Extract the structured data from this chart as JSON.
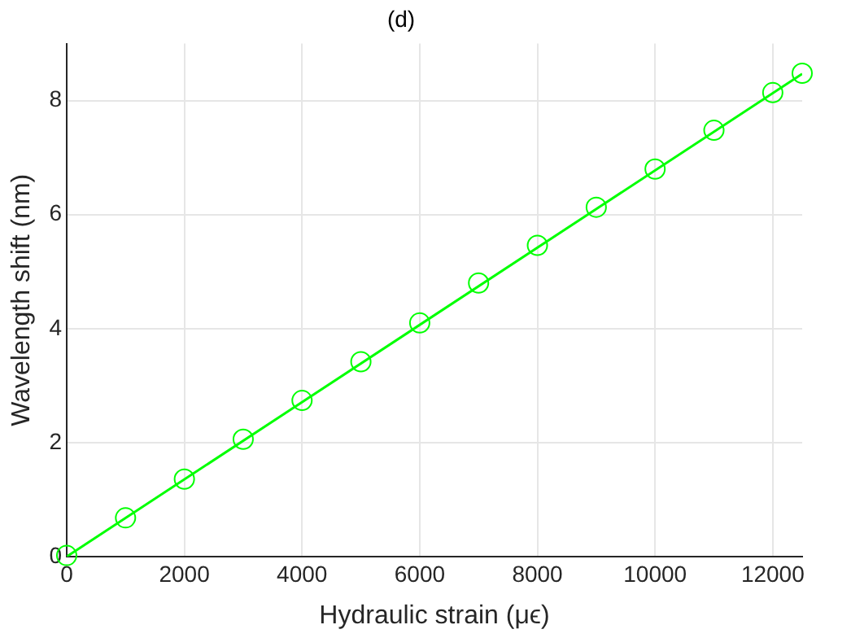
{
  "chart_data": {
    "type": "scatter",
    "title": "(d)",
    "xlabel": "Hydraulic strain (μϵ)",
    "ylabel": "Wavelength shift (nm)",
    "xlim": [
      0,
      12500
    ],
    "xticks": [
      0,
      2000,
      4000,
      6000,
      8000,
      10000,
      12000
    ],
    "ylim": [
      0,
      9
    ],
    "yticks": [
      0,
      2,
      4,
      6,
      8
    ],
    "grid": true,
    "series": [
      {
        "color": "#00ff00",
        "marker": "circle",
        "x": [
          0,
          1000,
          2000,
          3000,
          4000,
          5000,
          6000,
          7000,
          8000,
          9000,
          10000,
          11000,
          12000,
          12500
        ],
        "values": [
          0.02,
          0.68,
          1.36,
          2.06,
          2.74,
          3.42,
          4.1,
          4.8,
          5.46,
          6.13,
          6.8,
          7.48,
          8.14,
          8.48
        ]
      },
      {
        "type": "line",
        "color": "#00ff00",
        "marker": "none",
        "x": [
          0,
          12500
        ],
        "values": [
          0.0,
          8.47
        ]
      }
    ]
  }
}
